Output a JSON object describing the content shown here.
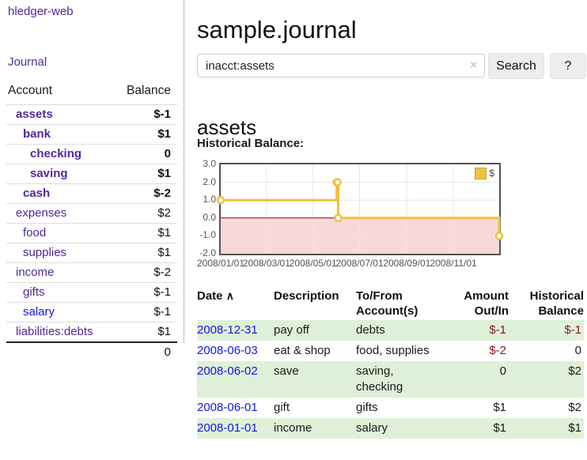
{
  "app": {
    "brand": "hledger-web",
    "nav_journal": "Journal"
  },
  "sidebar": {
    "header": {
      "account": "Account",
      "balance": "Balance"
    },
    "accounts": [
      {
        "name": "assets",
        "depth": 1,
        "bold": true,
        "color": "purple",
        "balance": "$-1",
        "tone": "neg"
      },
      {
        "name": "bank",
        "depth": 2,
        "bold": true,
        "color": "purple",
        "balance": "$1",
        "tone": "plain"
      },
      {
        "name": "checking",
        "depth": 3,
        "bold": true,
        "color": "purple",
        "balance": "0",
        "tone": "plain"
      },
      {
        "name": "saving",
        "depth": 3,
        "bold": true,
        "color": "purple",
        "balance": "$1",
        "tone": "plain"
      },
      {
        "name": "cash",
        "depth": 2,
        "bold": true,
        "color": "purple",
        "balance": "$-2",
        "tone": "neg"
      },
      {
        "name": "expenses",
        "depth": 1,
        "bold": false,
        "color": "purple",
        "balance": "$2",
        "tone": "plain"
      },
      {
        "name": "food",
        "depth": 2,
        "bold": false,
        "color": "purple",
        "balance": "$1",
        "tone": "plain"
      },
      {
        "name": "supplies",
        "depth": 2,
        "bold": false,
        "color": "purple",
        "balance": "$1",
        "tone": "plain"
      },
      {
        "name": "income",
        "depth": 1,
        "bold": false,
        "color": "purple",
        "balance": "$-2",
        "tone": "neg-soft"
      },
      {
        "name": "gifts",
        "depth": 2,
        "bold": false,
        "color": "purple",
        "balance": "$-1",
        "tone": "neg-soft"
      },
      {
        "name": "salary",
        "depth": 2,
        "bold": false,
        "color": "blue",
        "balance": "$-1",
        "tone": "neg-soft"
      },
      {
        "name": "liabilities:debts",
        "depth": 1,
        "bold": false,
        "color": "purple",
        "balance": "$1",
        "tone": "plain"
      }
    ],
    "total": "0"
  },
  "main": {
    "title": "sample.journal",
    "search": {
      "value": "inacct:assets",
      "clear_label": "×",
      "button_label": "Search",
      "help_label": "?"
    },
    "account_heading": "assets"
  },
  "chart_data": {
    "type": "line",
    "title": "Historical Balance:",
    "series": [
      {
        "name": "$",
        "points": [
          [
            "2008-01-01",
            1
          ],
          [
            "2008-06-01",
            2
          ],
          [
            "2008-06-02",
            2
          ],
          [
            "2008-06-03",
            0
          ],
          [
            "2008-12-31",
            -1
          ]
        ]
      }
    ],
    "style": "steps",
    "x_range": [
      "2008-01-01",
      "2008-12-31"
    ],
    "ylim": [
      -2,
      3
    ],
    "y_ticks": [
      3.0,
      2.0,
      1.0,
      0.0,
      -1.0,
      -2.0
    ],
    "x_ticks": [
      "2008/01/01",
      "2008/03/01",
      "2008/05/01",
      "2008/07/01",
      "2008/09/01",
      "2008/11/01"
    ],
    "legend_position": "top-right",
    "grid": true,
    "negative_region_shaded": true
  },
  "register": {
    "columns": [
      "Date",
      "Description",
      "To/From Account(s)",
      "Amount Out/In",
      "Historical Balance"
    ],
    "sort_indicator": "∧",
    "rows": [
      {
        "date": "2008-12-31",
        "description": "pay off",
        "accounts": "debts",
        "amount": "$-1",
        "amount_tone": "neg",
        "balance": "$-1",
        "balance_tone": "neg"
      },
      {
        "date": "2008-06-03",
        "description": "eat & shop",
        "accounts": "food, supplies",
        "amount": "$-2",
        "amount_tone": "neg",
        "balance": "0",
        "balance_tone": "plain"
      },
      {
        "date": "2008-06-02",
        "description": "save",
        "accounts": "saving, checking",
        "amount": "0",
        "amount_tone": "plain",
        "balance": "$2",
        "balance_tone": "plain"
      },
      {
        "date": "2008-06-01",
        "description": "gift",
        "accounts": "gifts",
        "amount": "$1",
        "amount_tone": "plain",
        "balance": "$2",
        "balance_tone": "plain"
      },
      {
        "date": "2008-01-01",
        "description": "income",
        "accounts": "salary",
        "amount": "$1",
        "amount_tone": "plain",
        "balance": "$1",
        "balance_tone": "plain"
      }
    ]
  },
  "colors": {
    "purple": "#52289e",
    "blue": "#1515e6",
    "neg": "#8a1a23",
    "neg-soft": "#b2686e",
    "row-green": "#dff0d8",
    "row-border": "#dddddd",
    "chart-gold": "#edc240",
    "chart-pink": "#fbd8d8",
    "zero-line": "#8b0000",
    "chart-border": "#545454",
    "grid": "#e8e8e8",
    "axis-text": "#545454",
    "divider": "#bdbdbd",
    "button-bg": "#ededed"
  }
}
